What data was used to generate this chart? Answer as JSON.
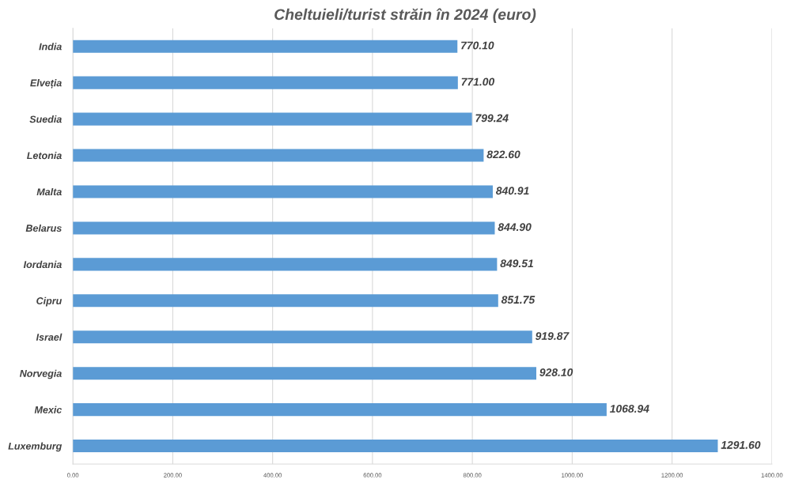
{
  "chart_data": {
    "type": "bar",
    "orientation": "horizontal",
    "title": "Cheltuieli/turist străin în 2024 (euro)",
    "categories": [
      "India",
      "Elveția",
      "Suedia",
      "Letonia",
      "Malta",
      "Belarus",
      "Iordania",
      "Cipru",
      "Israel",
      "Norvegia",
      "Mexic",
      "Luxemburg"
    ],
    "values": [
      770.1,
      771.0,
      799.24,
      822.6,
      840.91,
      844.9,
      849.51,
      851.75,
      919.87,
      928.1,
      1068.94,
      1291.6
    ],
    "value_labels": [
      "770.10",
      "771.00",
      "799.24",
      "822.60",
      "840.91",
      "844.90",
      "849.51",
      "851.75",
      "919.87",
      "928.10",
      "1068.94",
      "1291.60"
    ],
    "color": "#5b9bd5",
    "xlim": [
      0,
      1400
    ],
    "xticks": [
      {
        "value": 0,
        "label": "0.00"
      },
      {
        "value": 200,
        "label": "200.00"
      },
      {
        "value": 400,
        "label": "400.00"
      },
      {
        "value": 600,
        "label": "600.00"
      },
      {
        "value": 800,
        "label": "800.00"
      },
      {
        "value": 1000,
        "label": "1000.00"
      },
      {
        "value": 1200,
        "label": "1200.00"
      },
      {
        "value": 1400,
        "label": "1400.00"
      }
    ],
    "grid": "x",
    "legend": false
  }
}
